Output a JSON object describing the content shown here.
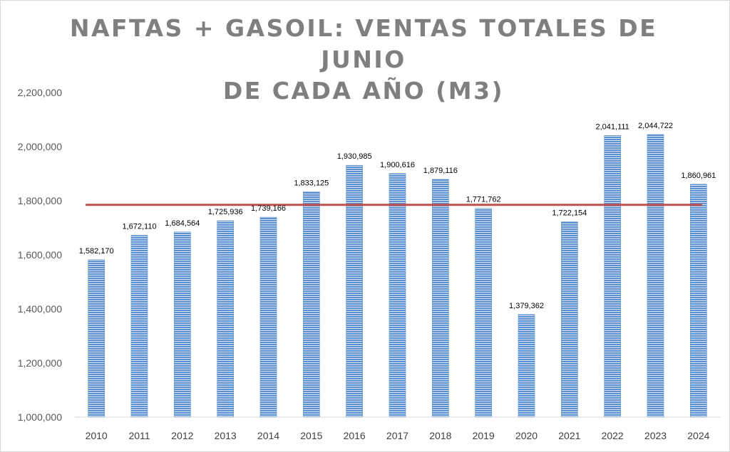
{
  "chart_data": {
    "type": "bar",
    "title_lines": [
      "NAFTAS + GASOIL: VENTAS TOTALES DE JUNIO",
      "DE CADA AÑO (M3)"
    ],
    "categories": [
      "2010",
      "2011",
      "2012",
      "2013",
      "2014",
      "2015",
      "2016",
      "2017",
      "2018",
      "2019",
      "2020",
      "2021",
      "2022",
      "2023",
      "2024"
    ],
    "values": [
      1582170,
      1672110,
      1684564,
      1725936,
      1739166,
      1833125,
      1930985,
      1900616,
      1879116,
      1771762,
      1379362,
      1722154,
      2041111,
      2044722,
      1860961
    ],
    "data_labels": [
      "1,582,170",
      "1,672,110",
      "1,684,564",
      "1,725,936",
      "1,739,166",
      "1,833,125",
      "1,930,985",
      "1,900,616",
      "1,879,116",
      "1,771,762",
      "1,379,362",
      "1,722,154",
      "2,041,111",
      "2,044,722",
      "1,860,961"
    ],
    "ylim": [
      1000000,
      2200000
    ],
    "yticks": [
      1000000,
      1200000,
      1400000,
      1600000,
      1800000,
      2000000,
      2200000
    ],
    "ytick_labels": [
      "1,000,000",
      "1,200,000",
      "1,400,000",
      "1,600,000",
      "1,800,000",
      "2,000,000",
      "2,200,000"
    ],
    "average_line_value": 1785000,
    "xlabel": "",
    "ylabel": "",
    "grid": false,
    "legend": "none",
    "colors": {
      "bar": "#5b8fd0",
      "bar_stripe": "#dce8f7",
      "average_line": "#c0504d",
      "axis": "#d9d9d9",
      "title": "#7f7f7f"
    }
  }
}
